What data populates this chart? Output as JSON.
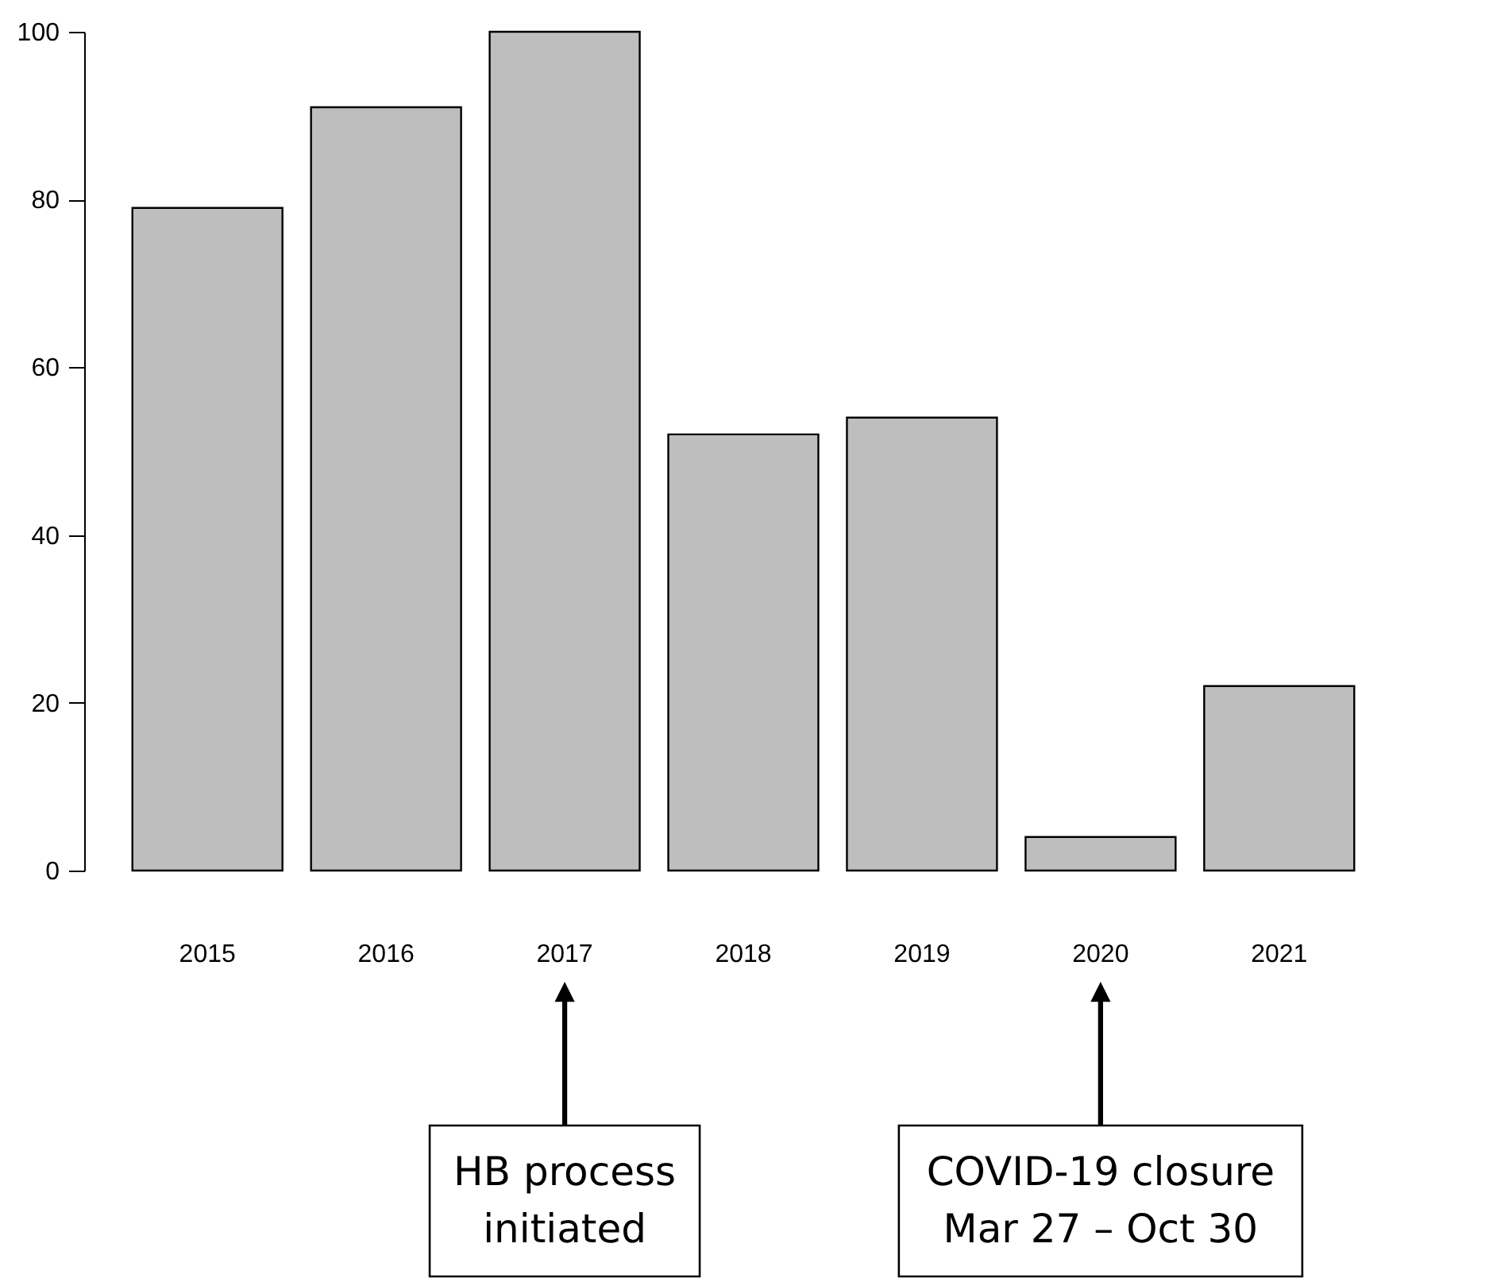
{
  "chart_data": {
    "type": "bar",
    "categories": [
      "2015",
      "2016",
      "2017",
      "2018",
      "2019",
      "2020",
      "2021"
    ],
    "values": [
      79,
      91,
      100,
      52,
      54,
      4,
      22
    ],
    "color": "#bebebe",
    "ylim": [
      0,
      100
    ],
    "yticks": [
      0,
      20,
      40,
      60,
      80,
      100
    ],
    "grid": false,
    "annotations": [
      "HB process\ninitiated",
      "COVID-19 closure\nMar 27 – Oct 30"
    ]
  }
}
